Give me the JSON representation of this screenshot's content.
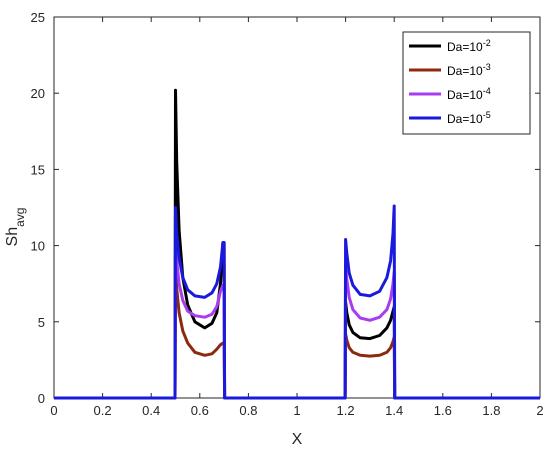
{
  "chart_data": {
    "type": "line",
    "xlabel": "X",
    "ylabel": {
      "main": "Sh",
      "sub": "avg"
    },
    "xlim": [
      0,
      2
    ],
    "ylim": [
      0,
      25
    ],
    "xticks": [
      "0",
      "0.2",
      "0.4",
      "0.6",
      "0.8",
      "1",
      "1.2",
      "1.4",
      "1.6",
      "1.8",
      "2"
    ],
    "yticks": [
      "0",
      "5",
      "10",
      "15",
      "20",
      "25"
    ],
    "grid": false,
    "legend_position": "top-right",
    "series": [
      {
        "name": "Da=10-2",
        "label_base": "Da=10",
        "label_exp": "-2",
        "color": "#000000",
        "x": [
          0,
          0.498,
          0.5,
          0.505,
          0.515,
          0.53,
          0.55,
          0.58,
          0.62,
          0.65,
          0.67,
          0.685,
          0.695,
          0.7,
          0.702,
          1.198,
          1.2,
          1.205,
          1.215,
          1.23,
          1.26,
          1.3,
          1.34,
          1.37,
          1.385,
          1.395,
          1.4,
          1.402,
          2
        ],
        "y": [
          0,
          0,
          20.2,
          15.5,
          11.0,
          7.9,
          6.1,
          5.0,
          4.6,
          4.9,
          5.6,
          7.5,
          10.2,
          10.2,
          0,
          0,
          6.3,
          5.6,
          4.8,
          4.3,
          3.95,
          3.9,
          4.1,
          4.6,
          5.1,
          5.7,
          6.0,
          0,
          0
        ]
      },
      {
        "name": "Da=10-3",
        "label_base": "Da=10",
        "label_exp": "-3",
        "color": "#8b2a0e",
        "x": [
          0,
          0.498,
          0.5,
          0.505,
          0.515,
          0.53,
          0.55,
          0.58,
          0.62,
          0.65,
          0.67,
          0.685,
          0.695,
          0.7,
          0.702,
          1.198,
          1.2,
          1.205,
          1.215,
          1.23,
          1.26,
          1.3,
          1.34,
          1.37,
          1.385,
          1.395,
          1.4,
          1.402,
          2
        ],
        "y": [
          0,
          0,
          8.5,
          7.2,
          5.6,
          4.4,
          3.6,
          3.0,
          2.8,
          2.9,
          3.2,
          3.5,
          3.6,
          3.6,
          0,
          0,
          4.2,
          3.8,
          3.3,
          3.0,
          2.8,
          2.75,
          2.8,
          3.0,
          3.3,
          3.7,
          4.0,
          0,
          0
        ]
      },
      {
        "name": "Da=10-4",
        "label_base": "Da=10",
        "label_exp": "-4",
        "color": "#a83cf0",
        "x": [
          0,
          0.498,
          0.5,
          0.505,
          0.515,
          0.53,
          0.55,
          0.58,
          0.62,
          0.65,
          0.67,
          0.685,
          0.695,
          0.7,
          0.702,
          1.198,
          1.2,
          1.205,
          1.215,
          1.23,
          1.26,
          1.3,
          1.34,
          1.37,
          1.385,
          1.395,
          1.4,
          1.402,
          2
        ],
        "y": [
          0,
          0,
          10.2,
          9.0,
          7.5,
          6.4,
          5.7,
          5.4,
          5.3,
          5.5,
          6.0,
          7.0,
          7.4,
          7.4,
          0,
          0,
          8.6,
          7.8,
          6.6,
          5.8,
          5.25,
          5.1,
          5.3,
          5.8,
          6.5,
          7.5,
          8.3,
          0,
          0
        ]
      },
      {
        "name": "Da=10-5",
        "label_base": "Da=10",
        "label_exp": "-5",
        "color": "#1a1adc",
        "x": [
          0,
          0.498,
          0.5,
          0.505,
          0.515,
          0.53,
          0.55,
          0.58,
          0.62,
          0.65,
          0.67,
          0.685,
          0.695,
          0.7,
          0.702,
          1.198,
          1.2,
          1.205,
          1.215,
          1.23,
          1.26,
          1.3,
          1.34,
          1.37,
          1.385,
          1.395,
          1.4,
          1.402,
          2
        ],
        "y": [
          0,
          0,
          12.5,
          10.8,
          9.2,
          7.9,
          7.1,
          6.7,
          6.6,
          6.9,
          7.5,
          8.6,
          10.2,
          10.2,
          0,
          0,
          10.4,
          9.5,
          8.2,
          7.4,
          6.8,
          6.7,
          7.0,
          7.9,
          9.0,
          10.8,
          12.6,
          0,
          0
        ]
      }
    ]
  }
}
